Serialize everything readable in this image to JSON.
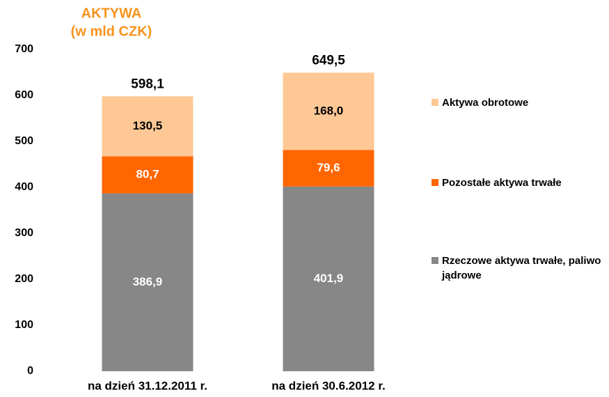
{
  "chart_data": {
    "type": "stacked_bar",
    "title": [
      "AKTYWA",
      "(w mld CZK)"
    ],
    "categories": [
      "na dzień 31.12.2011 r.",
      "na dzień 30.6.2012 r."
    ],
    "series": [
      {
        "name": "Rzeczowe aktywa trwałe, paliwo jądrowe",
        "color": "#878787",
        "label_color": "#ffffff",
        "values": [
          386.9,
          401.9
        ],
        "value_labels": [
          "386,9",
          "401,9"
        ]
      },
      {
        "name": "Pozostałe aktywa trwałe",
        "color": "#ff6600",
        "label_color": "#ffffff",
        "values": [
          80.7,
          79.6
        ],
        "value_labels": [
          "80,7",
          "79,6"
        ]
      },
      {
        "name": "Aktywa obrotowe",
        "color": "#fdc896",
        "label_color": "#000000",
        "values": [
          130.5,
          168.0
        ],
        "value_labels": [
          "130,5",
          "168,0"
        ]
      }
    ],
    "totals": [
      598.1,
      649.5
    ],
    "total_labels": [
      "598,1",
      "649,5"
    ],
    "ylim": [
      0,
      700
    ],
    "yticks": [
      0,
      100,
      200,
      300,
      400,
      500,
      600,
      700
    ],
    "grid": false,
    "legend": "right"
  }
}
